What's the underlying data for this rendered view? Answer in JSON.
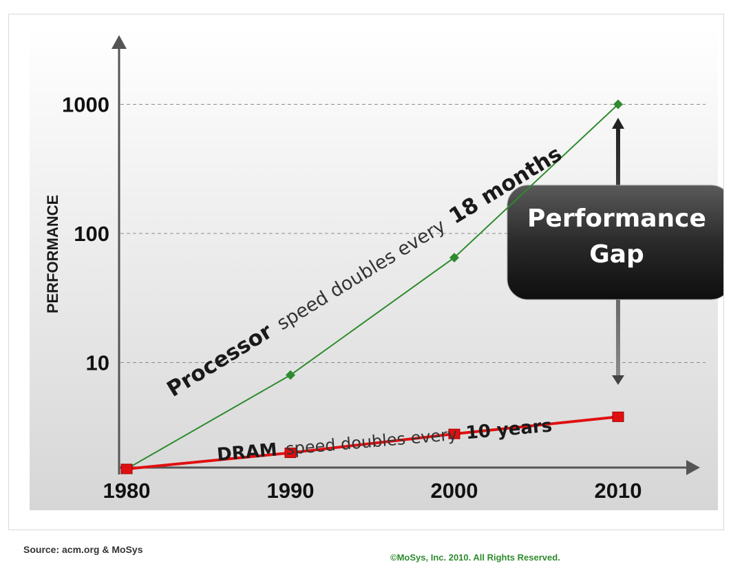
{
  "chart_data": {
    "type": "line",
    "y_scale": "log",
    "xlabel": "",
    "ylabel": "PERFORMANCE",
    "x": [
      1980,
      1990,
      2000,
      2010
    ],
    "x_tick_labels": [
      "1980",
      "1990",
      "2000",
      "2010"
    ],
    "y_ticks": [
      10,
      100,
      1000
    ],
    "y_tick_labels": [
      "10",
      "100",
      "1000"
    ],
    "ylim": [
      1,
      1000
    ],
    "grid": "horizontal dashed at y ticks",
    "series": [
      {
        "key": "processor",
        "color": "#2e8b2e",
        "marker": "diamond",
        "values": [
          1.5,
          8,
          65,
          1000
        ]
      },
      {
        "key": "dram",
        "color": "#e01010",
        "marker": "square",
        "values": [
          1.5,
          2.0,
          2.8,
          3.8
        ]
      }
    ],
    "annotations": {
      "processor_label": {
        "bold": "Processor",
        "mid": " speed doubles every ",
        "tail": "18 months"
      },
      "dram_label": {
        "bold": "DRAM",
        "mid": " speed doubles every ",
        "tail": "10 years"
      },
      "gap_line1": "Performance",
      "gap_line2": "Gap"
    }
  },
  "footer": {
    "source": "Source:  acm.org & MoSys",
    "copyright": "©MoSys, Inc. 2010.  All Rights  Reserved."
  }
}
